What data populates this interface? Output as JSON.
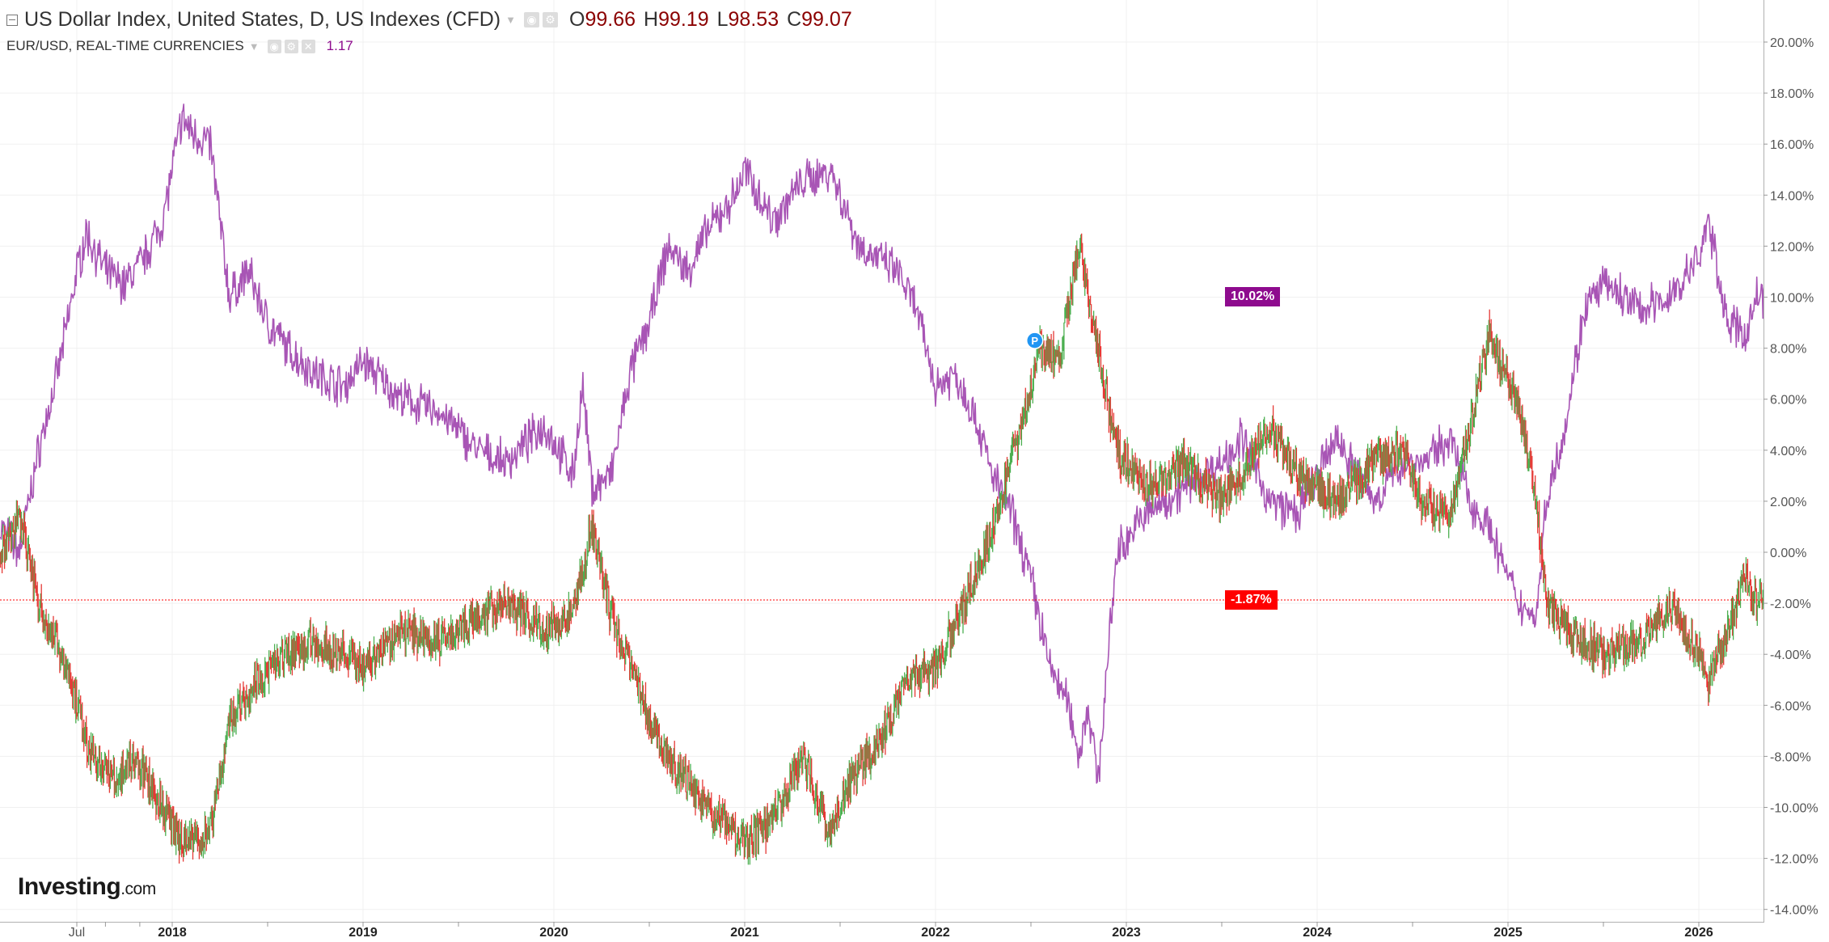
{
  "legend": {
    "main_title": "US Dollar Index, United States, D, US Indexes (CFD)",
    "ohlc": [
      {
        "key": "O",
        "value": "99.66"
      },
      {
        "key": "H",
        "value": "99.19"
      },
      {
        "key": "L",
        "value": "98.53"
      },
      {
        "key": "C",
        "value": "99.07"
      }
    ],
    "overlay_title": "EUR/USD, REAL-TIME CURRENCIES",
    "overlay_value": "1.17"
  },
  "logo": {
    "text": "Investing",
    "suffix": ".com"
  },
  "marker": {
    "label": "P",
    "color": "#2196f3"
  },
  "icons": [
    "collapse-icon",
    "caret-down-icon",
    "eye-icon",
    "gear-icon",
    "close-icon"
  ],
  "colors": {
    "dxy_up": "#4caf50",
    "dxy_down": "#e53935",
    "eurusd": "#a855b5",
    "eurusd_tag": "#8e0b8e",
    "dxy_tag": "#ff0000",
    "axis_text": "#555555",
    "grid": "#f0f0f0"
  },
  "chart_data": {
    "type": "line",
    "title": "US Dollar Index, United States, D, US Indexes (CFD)",
    "ylabel": "",
    "xlabel": "",
    "ylim": [
      -14.5,
      21.5
    ],
    "y_ticks": [
      "20.00%",
      "18.00%",
      "16.00%",
      "14.00%",
      "12.00%",
      "10.00%",
      "8.00%",
      "6.00%",
      "4.00%",
      "2.00%",
      "0.00%",
      "-2.00%",
      "-4.00%",
      "-6.00%",
      "-8.00%",
      "-10.00%",
      "-12.00%",
      "-14.00%"
    ],
    "y_tick_values": [
      20,
      18,
      16,
      14,
      12,
      10,
      8,
      6,
      4,
      2,
      0,
      -2,
      -4,
      -6,
      -8,
      -10,
      -12,
      -14
    ],
    "x_ticks": [
      {
        "label": "Jul",
        "t": 2017.5
      },
      {
        "label": "2018",
        "t": 2018.0
      },
      {
        "label": "2019",
        "t": 2019.0
      },
      {
        "label": "2020",
        "t": 2020.0
      },
      {
        "label": "2021",
        "t": 2021.0
      },
      {
        "label": "2022",
        "t": 2022.0
      },
      {
        "label": "2023",
        "t": 2023.0
      },
      {
        "label": "2024",
        "t": 2024.0
      },
      {
        "label": "2025",
        "t": 2025.0
      },
      {
        "label": "2026",
        "t": 2026.0
      }
    ],
    "xlim": [
      2017.1,
      2026.35
    ],
    "grid": true,
    "last_value_tags": [
      {
        "series": "EUR/USD",
        "label": "10.02%",
        "value": 10.02
      },
      {
        "series": "US Dollar Index",
        "label": "-1.87%",
        "value": -1.87
      }
    ],
    "series": [
      {
        "name": "US Dollar Index",
        "style": "candles",
        "x": [
          2017.1,
          2017.2,
          2017.3,
          2017.45,
          2017.55,
          2017.7,
          2017.8,
          2017.95,
          2018.05,
          2018.2,
          2018.3,
          2018.45,
          2018.6,
          2018.75,
          2018.9,
          2019.0,
          2019.2,
          2019.4,
          2019.6,
          2019.75,
          2019.95,
          2020.1,
          2020.2,
          2020.3,
          2020.4,
          2020.5,
          2020.6,
          2020.8,
          2020.95,
          2021.0,
          2021.15,
          2021.3,
          2021.45,
          2021.55,
          2021.7,
          2021.85,
          2022.0,
          2022.15,
          2022.3,
          2022.45,
          2022.55,
          2022.65,
          2022.75,
          2022.85,
          2022.95,
          2023.1,
          2023.3,
          2023.5,
          2023.6,
          2023.75,
          2023.9,
          2024.1,
          2024.3,
          2024.45,
          2024.55,
          2024.7,
          2024.8,
          2024.9,
          2025.05,
          2025.15,
          2025.2,
          2025.3,
          2025.5,
          2025.7,
          2025.85,
          2026.0,
          2026.05,
          2026.15,
          2026.25,
          2026.3
        ],
        "y": [
          0.0,
          1.5,
          -2.0,
          -4.5,
          -7.5,
          -9.0,
          -8.0,
          -10.0,
          -11.5,
          -11.0,
          -6.5,
          -5.0,
          -4.0,
          -3.5,
          -4.0,
          -4.5,
          -3.0,
          -3.5,
          -2.5,
          -2.0,
          -3.0,
          -2.5,
          1.0,
          -2.5,
          -4.5,
          -6.5,
          -8.0,
          -10.0,
          -11.0,
          -11.5,
          -10.5,
          -8.0,
          -11.0,
          -9.0,
          -7.5,
          -5.0,
          -4.5,
          -2.0,
          1.0,
          5.0,
          8.0,
          7.5,
          12.0,
          8.0,
          4.0,
          2.5,
          3.5,
          2.0,
          3.0,
          5.0,
          3.0,
          2.0,
          3.5,
          4.0,
          2.0,
          1.5,
          5.0,
          8.5,
          6.0,
          2.0,
          -2.0,
          -3.0,
          -4.0,
          -3.5,
          -2.0,
          -4.0,
          -5.0,
          -3.0,
          -1.0,
          -1.87
        ]
      },
      {
        "name": "EUR/USD",
        "style": "line",
        "x": [
          2017.1,
          2017.2,
          2017.3,
          2017.4,
          2017.5,
          2017.55,
          2017.65,
          2017.75,
          2017.85,
          2017.95,
          2018.05,
          2018.1,
          2018.2,
          2018.3,
          2018.4,
          2018.5,
          2018.6,
          2018.75,
          2018.9,
          2019.0,
          2019.2,
          2019.4,
          2019.6,
          2019.75,
          2019.95,
          2020.1,
          2020.15,
          2020.2,
          2020.3,
          2020.4,
          2020.5,
          2020.6,
          2020.7,
          2020.8,
          2020.95,
          2021.0,
          2021.15,
          2021.3,
          2021.45,
          2021.6,
          2021.8,
          2021.9,
          2022.0,
          2022.1,
          2022.2,
          2022.3,
          2022.4,
          2022.5,
          2022.6,
          2022.7,
          2022.75,
          2022.8,
          2022.85,
          2022.95,
          2023.1,
          2023.3,
          2023.5,
          2023.6,
          2023.75,
          2023.9,
          2024.1,
          2024.3,
          2024.45,
          2024.55,
          2024.7,
          2024.8,
          2024.9,
          2025.05,
          2025.15,
          2025.2,
          2025.3,
          2025.4,
          2025.5,
          2025.7,
          2025.85,
          2026.0,
          2026.05,
          2026.15,
          2026.25,
          2026.3
        ],
        "y": [
          1.0,
          0.0,
          4.0,
          7.0,
          11.0,
          12.5,
          11.0,
          10.5,
          11.5,
          13.0,
          17.0,
          16.5,
          16.0,
          10.0,
          11.0,
          9.0,
          8.0,
          7.0,
          6.5,
          7.5,
          6.0,
          5.5,
          4.0,
          3.5,
          5.0,
          3.0,
          6.5,
          2.5,
          3.0,
          7.0,
          9.0,
          12.0,
          11.0,
          12.5,
          14.0,
          15.0,
          13.0,
          14.5,
          15.0,
          12.0,
          11.0,
          9.5,
          6.5,
          7.0,
          5.5,
          3.0,
          1.5,
          -1.0,
          -4.5,
          -6.0,
          -8.0,
          -6.0,
          -9.0,
          0.0,
          1.5,
          2.5,
          3.5,
          4.5,
          2.0,
          1.5,
          4.5,
          2.0,
          3.5,
          3.5,
          4.5,
          2.0,
          1.0,
          -2.0,
          -2.5,
          2.0,
          5.0,
          9.5,
          10.5,
          9.5,
          10.0,
          11.5,
          13.0,
          9.0,
          8.5,
          10.02
        ]
      }
    ]
  }
}
